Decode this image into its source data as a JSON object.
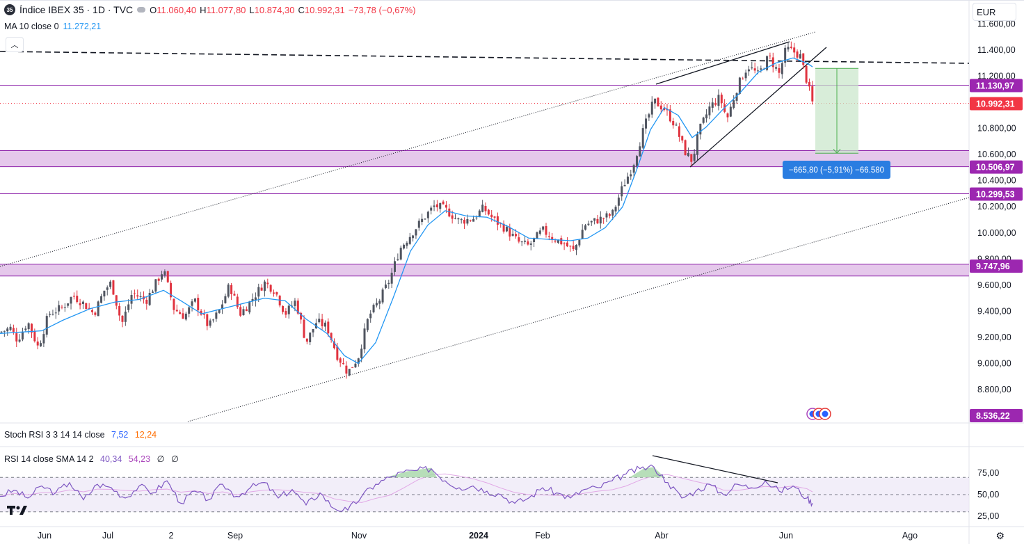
{
  "header": {
    "symbol_badge": "35",
    "title": "Índice IBEX 35 · 1D · TVC",
    "ohlc": [
      {
        "k": "O",
        "v": "11.060,40"
      },
      {
        "k": "H",
        "v": "11.077,80"
      },
      {
        "k": "L",
        "v": "10.874,30"
      },
      {
        "k": "C",
        "v": "10.992,31"
      },
      {
        "k": "",
        "v": "−73,78 (−0,67%)"
      }
    ],
    "ma_label": "MA 10 close 0",
    "ma_value": "11.272,21",
    "currency": "EUR"
  },
  "stoch_legend": {
    "label": "Stoch RSI 3 3 14 14 close",
    "k": "7,52",
    "d": "12,24"
  },
  "rsi_legend": {
    "label": "RSI 14 close SMA 14 2",
    "v1": "40,34",
    "v2": "54,23",
    "v3": "∅",
    "v4": "∅"
  },
  "measure_label": "−665,80 (−5,91%) −66.580",
  "colors": {
    "up": "#505560",
    "down": "#e0333f",
    "ma": "#2196f3",
    "zone": "#e1bee7",
    "zone_line": "#8e24aa",
    "rsi": "#7e57c2",
    "rsi_sma": "#e1a8e6",
    "price_badge": "#f23645",
    "level_badge": "#9c27b0",
    "measure": "#4caf50",
    "measure_badge": "#2a7de1"
  },
  "chart_data": {
    "type": "candlestick",
    "x_ticks": [
      "Jun",
      "Jul",
      "2",
      "Sep",
      "Nov",
      "2024",
      "Feb",
      "Abr",
      "Jun",
      "Ago"
    ],
    "x_tick_pos": [
      64,
      155,
      246,
      338,
      516,
      688,
      780,
      951,
      1130,
      1308
    ],
    "y_ticks": [
      "11.600,00",
      "11.400,00",
      "11.200,00",
      "10.800,00",
      "10.600,00",
      "10.400,00",
      "10.200,00",
      "10.000,00",
      "9.800,00",
      "9.600,00",
      "9.400,00",
      "9.200,00",
      "9.000,00",
      "8.800,00"
    ],
    "y_tick_values": [
      11600,
      11400,
      11200,
      10800,
      10600,
      10400,
      10200,
      10000,
      9800,
      9600,
      9400,
      9200,
      9000,
      8800
    ],
    "price_range": [
      8536.22,
      11650
    ],
    "levels": [
      {
        "value": 11130.97,
        "label": "11.130,97",
        "kind": "line"
      },
      {
        "value": 10992.31,
        "label": "10.992,31",
        "kind": "last"
      },
      {
        "value": 10506.97,
        "label": "10.506,97",
        "kind": "zone",
        "top": 10630
      },
      {
        "value": 10299.53,
        "label": "10.299,53",
        "kind": "line"
      },
      {
        "value": 9747.96,
        "label": "9.747,96",
        "kind": "zone",
        "top": 9760,
        "bottom": 9670
      },
      {
        "value": 8536.22,
        "label": "8.536,22",
        "kind": "bottom"
      }
    ],
    "waypoints": [
      [
        0,
        9240
      ],
      [
        15,
        9270
      ],
      [
        25,
        9180
      ],
      [
        40,
        9320
      ],
      [
        55,
        9120
      ],
      [
        70,
        9380
      ],
      [
        90,
        9430
      ],
      [
        105,
        9520
      ],
      [
        120,
        9460
      ],
      [
        135,
        9380
      ],
      [
        150,
        9560
      ],
      [
        160,
        9620
      ],
      [
        175,
        9300
      ],
      [
        190,
        9540
      ],
      [
        210,
        9480
      ],
      [
        235,
        9720
      ],
      [
        250,
        9420
      ],
      [
        265,
        9360
      ],
      [
        280,
        9480
      ],
      [
        300,
        9280
      ],
      [
        315,
        9400
      ],
      [
        330,
        9600
      ],
      [
        345,
        9380
      ],
      [
        355,
        9440
      ],
      [
        380,
        9620
      ],
      [
        395,
        9560
      ],
      [
        410,
        9380
      ],
      [
        425,
        9480
      ],
      [
        440,
        9160
      ],
      [
        455,
        9320
      ],
      [
        470,
        9280
      ],
      [
        485,
        9060
      ],
      [
        500,
        8930
      ],
      [
        515,
        9050
      ],
      [
        530,
        9360
      ],
      [
        545,
        9480
      ],
      [
        560,
        9640
      ],
      [
        575,
        9880
      ],
      [
        595,
        10020
      ],
      [
        610,
        10120
      ],
      [
        625,
        10210
      ],
      [
        640,
        10180
      ],
      [
        660,
        10090
      ],
      [
        680,
        10110
      ],
      [
        695,
        10190
      ],
      [
        710,
        10100
      ],
      [
        725,
        10040
      ],
      [
        745,
        9930
      ],
      [
        760,
        9900
      ],
      [
        780,
        10020
      ],
      [
        795,
        9960
      ],
      [
        810,
        9920
      ],
      [
        825,
        9860
      ],
      [
        840,
        10060
      ],
      [
        860,
        10100
      ],
      [
        880,
        10140
      ],
      [
        895,
        10350
      ],
      [
        910,
        10520
      ],
      [
        925,
        10790
      ],
      [
        940,
        11010
      ],
      [
        955,
        10950
      ],
      [
        970,
        10830
      ],
      [
        985,
        10620
      ],
      [
        995,
        10550
      ],
      [
        1005,
        10780
      ],
      [
        1020,
        10960
      ],
      [
        1035,
        11040
      ],
      [
        1045,
        10870
      ],
      [
        1060,
        11120
      ],
      [
        1075,
        11280
      ],
      [
        1090,
        11210
      ],
      [
        1105,
        11350
      ],
      [
        1120,
        11220
      ],
      [
        1130,
        11410
      ],
      [
        1140,
        11390
      ],
      [
        1150,
        11360
      ],
      [
        1160,
        11160
      ],
      [
        1168,
        10992
      ]
    ],
    "ma_waypoints": [
      [
        0,
        9230
      ],
      [
        30,
        9240
      ],
      [
        60,
        9250
      ],
      [
        90,
        9330
      ],
      [
        130,
        9420
      ],
      [
        165,
        9470
      ],
      [
        200,
        9490
      ],
      [
        235,
        9560
      ],
      [
        260,
        9480
      ],
      [
        290,
        9380
      ],
      [
        320,
        9420
      ],
      [
        350,
        9460
      ],
      [
        380,
        9500
      ],
      [
        410,
        9480
      ],
      [
        440,
        9340
      ],
      [
        470,
        9230
      ],
      [
        495,
        9060
      ],
      [
        515,
        9000
      ],
      [
        540,
        9160
      ],
      [
        565,
        9500
      ],
      [
        590,
        9860
      ],
      [
        615,
        10060
      ],
      [
        640,
        10170
      ],
      [
        670,
        10130
      ],
      [
        700,
        10120
      ],
      [
        730,
        10050
      ],
      [
        760,
        9960
      ],
      [
        790,
        9950
      ],
      [
        820,
        9940
      ],
      [
        845,
        9960
      ],
      [
        870,
        10040
      ],
      [
        895,
        10200
      ],
      [
        915,
        10480
      ],
      [
        935,
        10790
      ],
      [
        955,
        10960
      ],
      [
        975,
        10900
      ],
      [
        995,
        10730
      ],
      [
        1015,
        10810
      ],
      [
        1040,
        10950
      ],
      [
        1065,
        11080
      ],
      [
        1090,
        11230
      ],
      [
        1115,
        11300
      ],
      [
        1140,
        11340
      ],
      [
        1160,
        11300
      ],
      [
        1168,
        11272
      ]
    ],
    "rsi_ticks": [
      "75,00",
      "50,00",
      "25,00"
    ],
    "rsi_tick_values": [
      75,
      50,
      25
    ],
    "rsi_band": [
      70,
      30
    ],
    "rsi_waypoints": [
      [
        0,
        48
      ],
      [
        20,
        55
      ],
      [
        40,
        46
      ],
      [
        60,
        60
      ],
      [
        80,
        52
      ],
      [
        100,
        64
      ],
      [
        120,
        44
      ],
      [
        140,
        62
      ],
      [
        160,
        58
      ],
      [
        180,
        46
      ],
      [
        200,
        60
      ],
      [
        220,
        52
      ],
      [
        240,
        66
      ],
      [
        260,
        40
      ],
      [
        280,
        54
      ],
      [
        300,
        44
      ],
      [
        320,
        62
      ],
      [
        340,
        48
      ],
      [
        360,
        58
      ],
      [
        380,
        64
      ],
      [
        400,
        46
      ],
      [
        420,
        56
      ],
      [
        440,
        38
      ],
      [
        460,
        52
      ],
      [
        480,
        34
      ],
      [
        500,
        32
      ],
      [
        520,
        48
      ],
      [
        540,
        62
      ],
      [
        560,
        70
      ],
      [
        580,
        76
      ],
      [
        600,
        78
      ],
      [
        620,
        80
      ],
      [
        640,
        66
      ],
      [
        660,
        58
      ],
      [
        680,
        60
      ],
      [
        700,
        54
      ],
      [
        720,
        50
      ],
      [
        740,
        40
      ],
      [
        760,
        46
      ],
      [
        780,
        58
      ],
      [
        800,
        52
      ],
      [
        820,
        46
      ],
      [
        840,
        56
      ],
      [
        860,
        58
      ],
      [
        880,
        66
      ],
      [
        900,
        74
      ],
      [
        920,
        80
      ],
      [
        940,
        82
      ],
      [
        960,
        64
      ],
      [
        980,
        46
      ],
      [
        1000,
        54
      ],
      [
        1020,
        62
      ],
      [
        1040,
        50
      ],
      [
        1060,
        62
      ],
      [
        1080,
        58
      ],
      [
        1100,
        66
      ],
      [
        1120,
        54
      ],
      [
        1140,
        60
      ],
      [
        1160,
        46
      ],
      [
        1168,
        40
      ]
    ]
  }
}
